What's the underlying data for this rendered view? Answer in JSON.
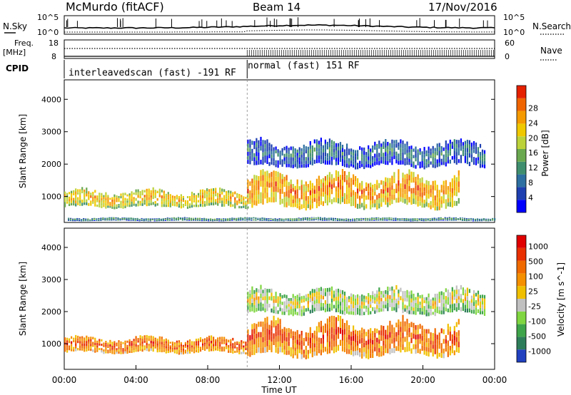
{
  "header": {
    "station": "McMurdo (fitACF)",
    "beam": "Beam 14",
    "date": "17/Nov/2016"
  },
  "noise_panel": {
    "left_label": "N.Sky",
    "right_label": "N.Search",
    "left_ticks": [
      "10^5",
      "10^0"
    ],
    "right_ticks": [
      "10^5",
      "10^0"
    ]
  },
  "freq_panel": {
    "left_label_1": "Freq.",
    "left_label_2": "[MHz]",
    "left_ticks": [
      "18",
      "8"
    ],
    "right_label": "Nave",
    "right_ticks": [
      "60",
      "0"
    ]
  },
  "cpid_panel": {
    "label": "CPID",
    "segments": [
      {
        "start_hour": 0,
        "end_hour": 10.2,
        "name": "interleavedscan (fast) -191 RF"
      },
      {
        "start_hour": 10.2,
        "end_hour": 24,
        "name": "normal (fast) 151 RF"
      }
    ]
  },
  "chart_data": [
    {
      "type": "heatmap",
      "name": "power",
      "ylabel": "Slant Range [km]",
      "ylim": [
        200,
        4600
      ],
      "yticks": [
        "1000",
        "2000",
        "3000",
        "4000"
      ],
      "xlim_hours": [
        0,
        24
      ],
      "colorbar": {
        "label": "Power [dB]",
        "ticks": [
          "4",
          "8",
          "12",
          "16",
          "20",
          "24",
          "28"
        ],
        "colors": [
          "#0000ff",
          "#1d3fb0",
          "#2d6fa0",
          "#3f8f6e",
          "#6aa84f",
          "#bcd23a",
          "#f0c800",
          "#f59a00",
          "#f06400",
          "#e52000"
        ]
      },
      "bands": [
        {
          "start_hour": 0.0,
          "end_hour": 10.2,
          "range_low": 650,
          "range_high": 1200,
          "level": 6
        },
        {
          "start_hour": 10.2,
          "end_hour": 22.0,
          "range_low": 650,
          "range_high": 1700,
          "level": 7
        },
        {
          "start_hour": 10.2,
          "end_hour": 23.5,
          "range_low": 1900,
          "range_high": 2700,
          "level": 2
        },
        {
          "start_hour": 0.2,
          "end_hour": 24.0,
          "range_low": 250,
          "range_high": 350,
          "level": 3
        }
      ]
    },
    {
      "type": "heatmap",
      "name": "velocity",
      "ylabel": "Slant Range [km]",
      "ylim": [
        200,
        4600
      ],
      "yticks": [
        "1000",
        "2000",
        "3000",
        "4000"
      ],
      "xlim_hours": [
        0,
        24
      ],
      "xticks": [
        "00:00",
        "04:00",
        "08:00",
        "12:00",
        "16:00",
        "20:00",
        "00:00"
      ],
      "xlabel": "Time UT",
      "colorbar": {
        "label": "Velocity [m s^-1]",
        "ticks": [
          "1000",
          "500",
          "100",
          "25",
          "-25",
          "-100",
          "-500",
          "-1000"
        ],
        "colors": [
          "#2040c0",
          "#2e7d5a",
          "#3fa54a",
          "#7fd640",
          "#c0c0c0",
          "#f0c000",
          "#f59000",
          "#f06a00",
          "#e83000",
          "#e00000"
        ]
      },
      "bands": [
        {
          "start_hour": 0.0,
          "end_hour": 10.2,
          "range_low": 700,
          "range_high": 1200,
          "level": 7
        },
        {
          "start_hour": 10.2,
          "end_hour": 22.0,
          "range_low": 600,
          "range_high": 1700,
          "level": 7
        },
        {
          "start_hour": 10.2,
          "end_hour": 23.5,
          "range_low": 1900,
          "range_high": 2700,
          "level": 4
        }
      ]
    }
  ]
}
